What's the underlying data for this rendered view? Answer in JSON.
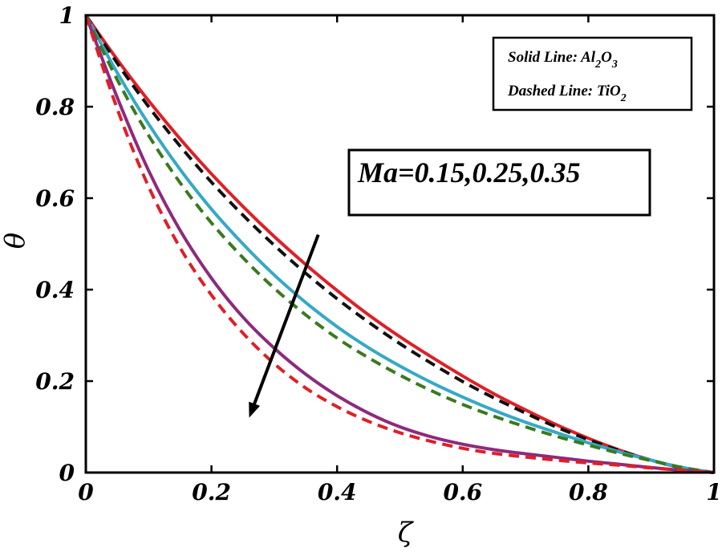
{
  "chart_data": {
    "type": "line",
    "title": "",
    "xlabel": "ζ",
    "ylabel": "θ",
    "xlim": [
      0,
      1
    ],
    "ylim": [
      0,
      1
    ],
    "xticks": [
      0,
      0.2,
      0.4,
      0.6,
      0.8,
      1
    ],
    "yticks": [
      0,
      0.2,
      0.4,
      0.6,
      0.8,
      1
    ],
    "xtick_labels": [
      "0",
      "0.2",
      "0.4",
      "0.6",
      "0.8",
      "1"
    ],
    "ytick_labels": [
      "0",
      "0.2",
      "0.4",
      "0.6",
      "0.8",
      "1"
    ],
    "legend": {
      "placement": "top-right",
      "solid": {
        "prefix": "Solid Line: Al",
        "sub1": "2",
        "mid": "O",
        "sub2": "3"
      },
      "dashed": {
        "prefix": "Dashed Line: TiO",
        "sub1": "2"
      }
    },
    "annotation": {
      "text": "Ma=0.15,0.25,0.35",
      "arrow_from": [
        0.37,
        0.52
      ],
      "arrow_to": [
        0.26,
        0.12
      ]
    },
    "x": [
      0,
      0.05,
      0.1,
      0.15,
      0.2,
      0.25,
      0.3,
      0.35,
      0.4,
      0.45,
      0.5,
      0.55,
      0.6,
      0.65,
      0.7,
      0.75,
      0.8,
      0.85,
      0.9,
      0.95,
      1.0
    ],
    "series": [
      {
        "name": "Al2O3, Ma=0.15",
        "color": "#e01f26",
        "dash": "solid",
        "values": [
          1.0,
          0.903,
          0.813,
          0.73,
          0.653,
          0.582,
          0.516,
          0.455,
          0.398,
          0.345,
          0.297,
          0.253,
          0.211,
          0.172,
          0.137,
          0.104,
          0.075,
          0.049,
          0.027,
          0.01,
          0.0
        ]
      },
      {
        "name": "TiO2, Ma=0.15",
        "color": "#111111",
        "dash": "dashed",
        "values": [
          1.0,
          0.895,
          0.8,
          0.714,
          0.635,
          0.563,
          0.497,
          0.436,
          0.38,
          0.329,
          0.282,
          0.239,
          0.199,
          0.163,
          0.13,
          0.099,
          0.072,
          0.048,
          0.027,
          0.01,
          0.0
        ]
      },
      {
        "name": "Al2O3, Ma=0.25",
        "color": "#35a9c6",
        "dash": "solid",
        "values": [
          1.0,
          0.874,
          0.762,
          0.663,
          0.576,
          0.5,
          0.432,
          0.372,
          0.319,
          0.273,
          0.233,
          0.197,
          0.165,
          0.136,
          0.11,
          0.087,
          0.065,
          0.045,
          0.027,
          0.011,
          0.0
        ]
      },
      {
        "name": "TiO2, Ma=0.25",
        "color": "#3a7a1e",
        "dash": "dashed",
        "values": [
          1.0,
          0.859,
          0.737,
          0.634,
          0.546,
          0.47,
          0.403,
          0.345,
          0.294,
          0.251,
          0.213,
          0.179,
          0.149,
          0.123,
          0.1,
          0.079,
          0.06,
          0.042,
          0.026,
          0.011,
          0.0
        ]
      },
      {
        "name": "Al2O3, Ma=0.35",
        "color": "#8e2a7c",
        "dash": "solid",
        "values": [
          1.0,
          0.82,
          0.66,
          0.53,
          0.425,
          0.34,
          0.272,
          0.215,
          0.168,
          0.13,
          0.1,
          0.078,
          0.062,
          0.05,
          0.041,
          0.033,
          0.025,
          0.018,
          0.011,
          0.005,
          0.0
        ]
      },
      {
        "name": "TiO2, Ma=0.35",
        "color": "#e01f26",
        "dash": "dashed",
        "values": [
          1.0,
          0.795,
          0.625,
          0.492,
          0.388,
          0.305,
          0.238,
          0.185,
          0.144,
          0.112,
          0.087,
          0.068,
          0.053,
          0.042,
          0.034,
          0.027,
          0.021,
          0.016,
          0.01,
          0.005,
          0.0
        ]
      }
    ]
  }
}
